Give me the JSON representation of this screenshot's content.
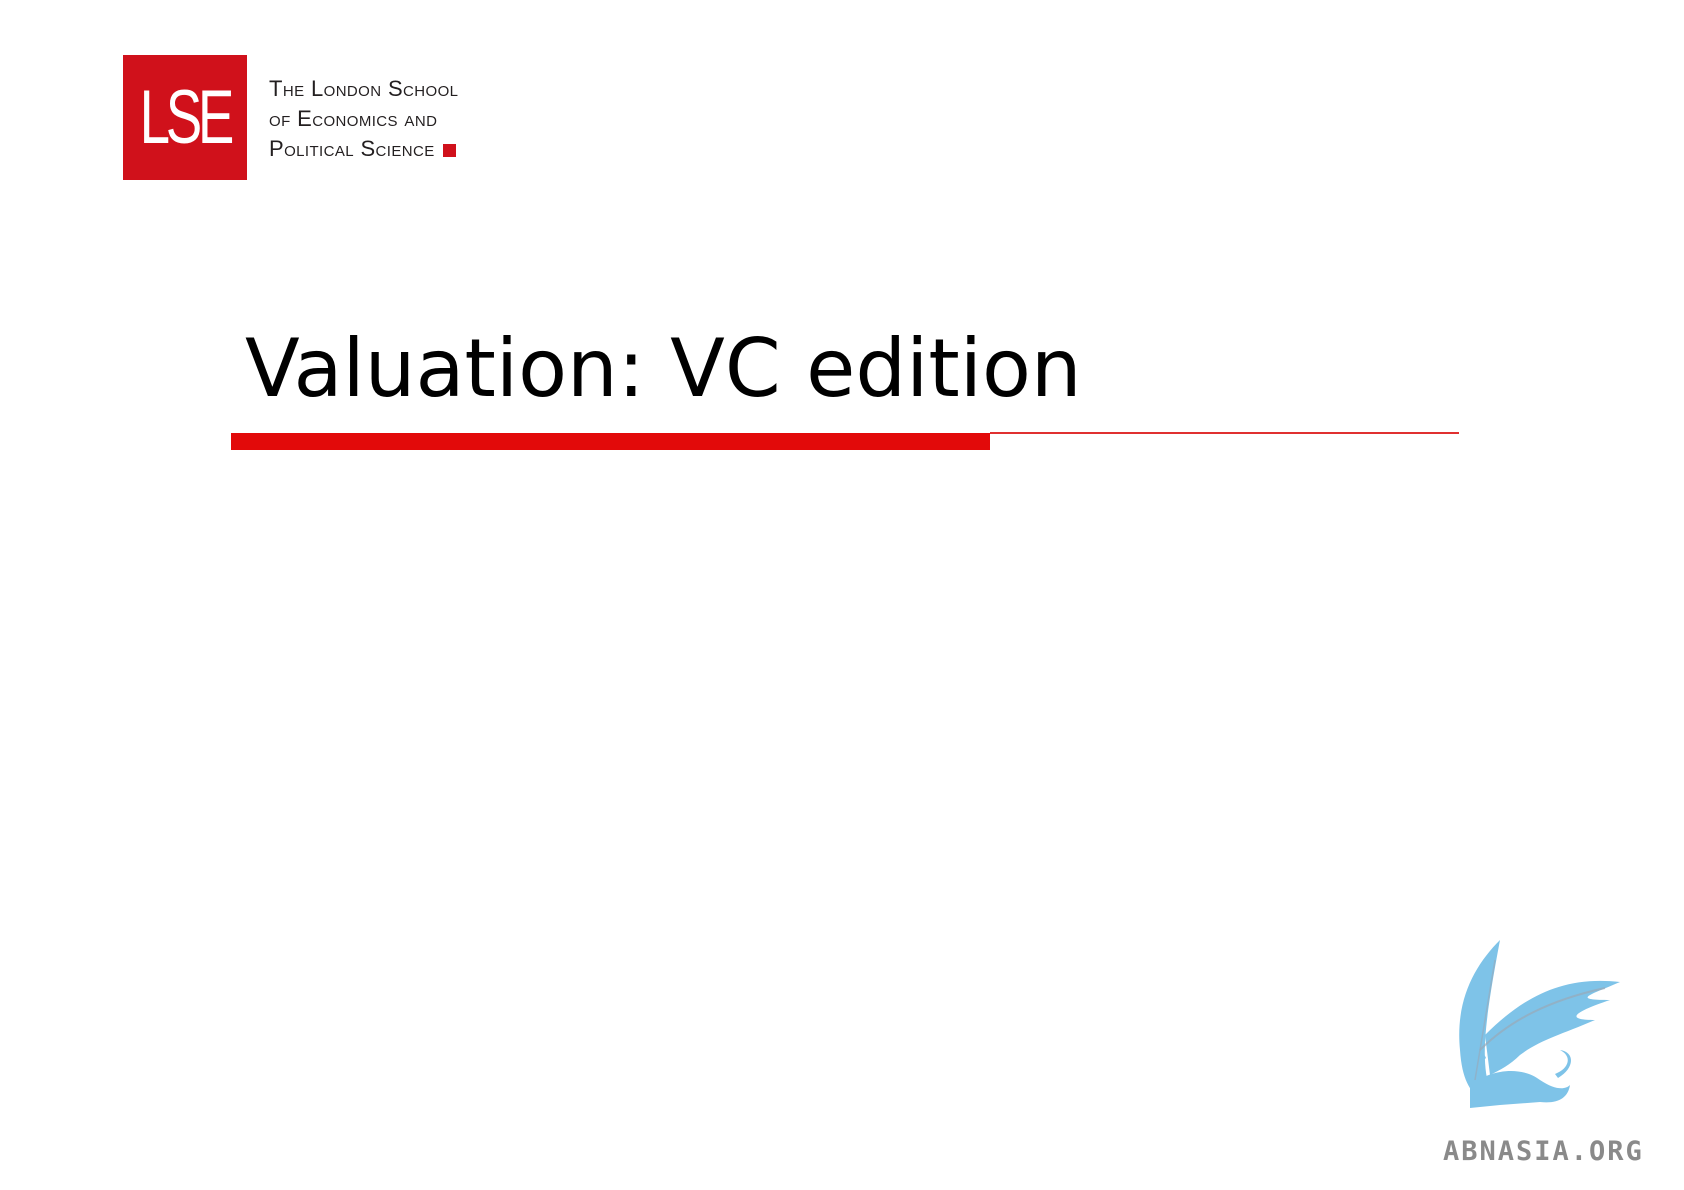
{
  "logo": {
    "monogram": "LSE",
    "line1": "The London School",
    "line2": "of Economics and",
    "line3": "Political Science",
    "brand_color": "#d0111b"
  },
  "slide": {
    "title": "Valuation: VC edition",
    "accent_color": "#e20a0a"
  },
  "watermark": {
    "icon": "griffin-icon",
    "text": "ABNASIA.ORG",
    "color": "#7ec3e8"
  }
}
